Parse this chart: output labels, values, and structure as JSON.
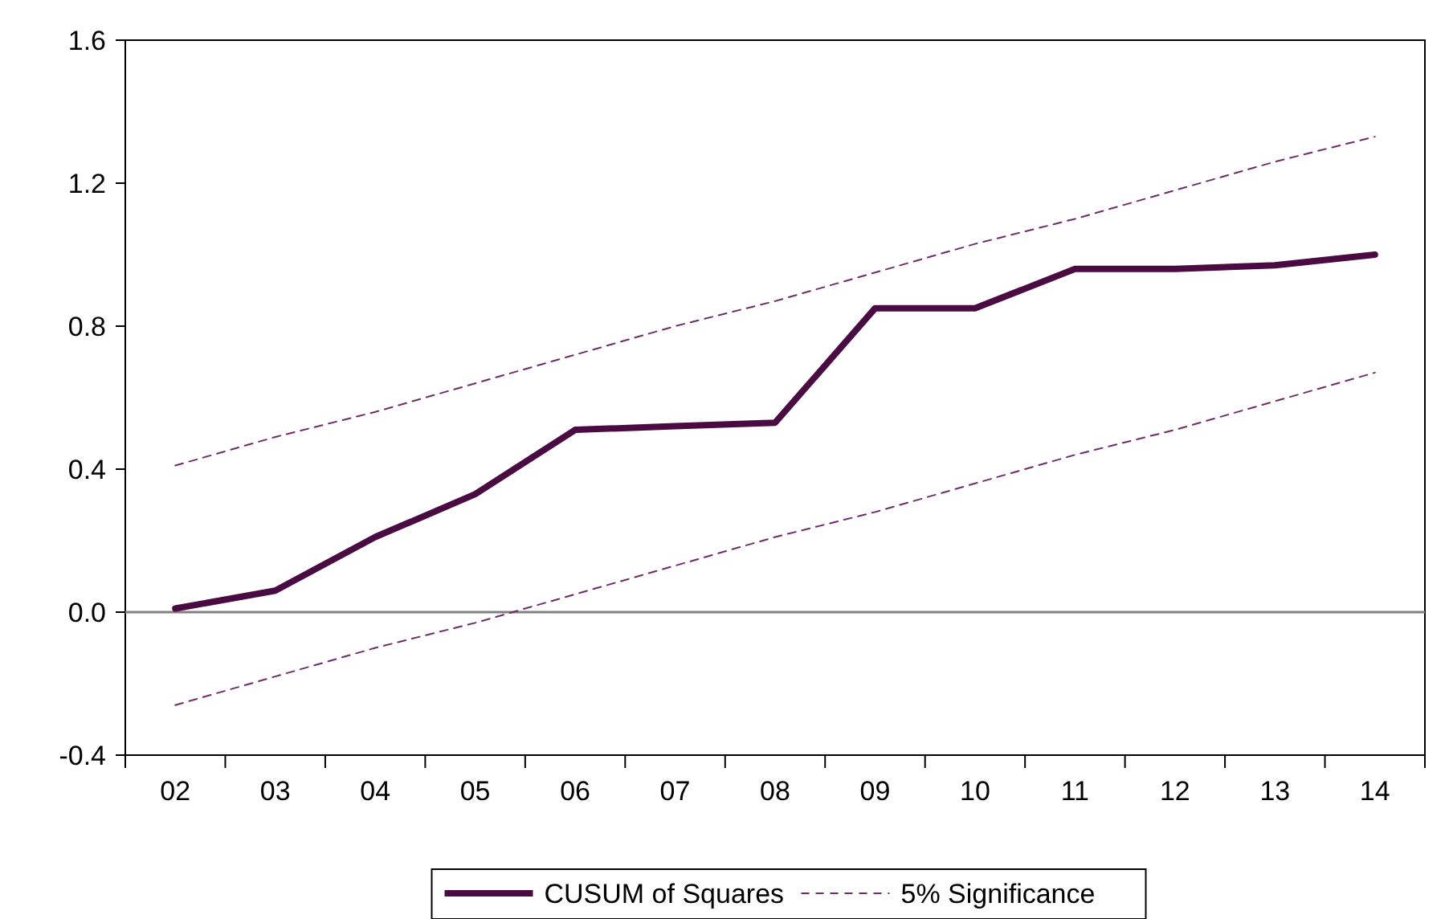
{
  "chart_data": {
    "type": "line",
    "categories": [
      "02",
      "03",
      "04",
      "05",
      "06",
      "07",
      "08",
      "09",
      "10",
      "11",
      "12",
      "13",
      "14"
    ],
    "series": [
      {
        "name": "CUSUM of Squares",
        "color": "#4a0a42",
        "line_style": "solid",
        "values": [
          0.01,
          0.06,
          0.21,
          0.33,
          0.51,
          0.52,
          0.53,
          0.85,
          0.85,
          0.96,
          0.96,
          0.97,
          1.0
        ]
      },
      {
        "name": "5% Significance",
        "color": "#6e2c6a",
        "line_style": "dashed",
        "values": [
          0.41,
          0.49,
          0.56,
          0.64,
          0.72,
          0.8,
          0.87,
          0.95,
          1.03,
          1.1,
          1.18,
          1.26,
          1.33
        ]
      },
      {
        "color": "#6e2c6a",
        "line_style": "dashed",
        "values": [
          -0.26,
          -0.18,
          -0.1,
          -0.03,
          0.05,
          0.13,
          0.21,
          0.28,
          0.36,
          0.44,
          0.51,
          0.59,
          0.67
        ]
      }
    ],
    "ylim": [
      -0.4,
      1.6
    ],
    "yticks": [
      {
        "value": -0.4,
        "label": "-0.4"
      },
      {
        "value": 0,
        "label": "0.0"
      },
      {
        "value": 0.4,
        "label": "0.4"
      },
      {
        "value": 0.8,
        "label": "0.8"
      },
      {
        "value": 1.2,
        "label": "1.2"
      },
      {
        "value": 1.6,
        "label": "1.6"
      }
    ],
    "ref_lines": [
      {
        "axis": "y",
        "value": 0,
        "color": "#808080"
      }
    ],
    "grid": false,
    "legend": "bottom",
    "marker": "none"
  }
}
